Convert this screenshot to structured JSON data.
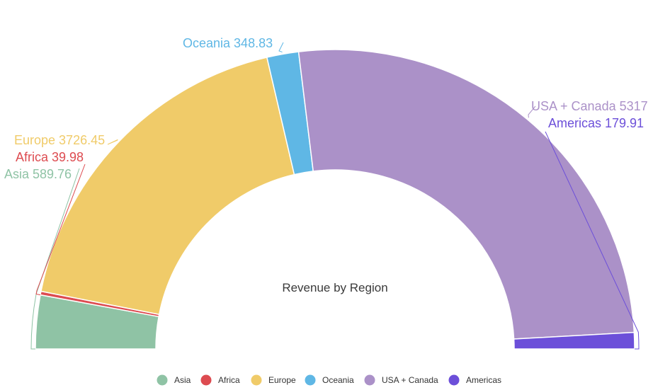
{
  "chart_data": {
    "type": "pie",
    "style": "semi-donut",
    "title": "Revenue by Region",
    "legend_position": "bottom",
    "slices": [
      {
        "name": "Asia",
        "value": 589.76,
        "label": "Asia 589.76",
        "color": "#8fc3a5"
      },
      {
        "name": "Africa",
        "value": 39.98,
        "label": "Africa 39.98",
        "color": "#dd4b50"
      },
      {
        "name": "Europe",
        "value": 3726.45,
        "label": "Europe 3726.45",
        "color": "#f0cb69"
      },
      {
        "name": "Oceania",
        "value": 348.83,
        "label": "Oceania 348.83",
        "color": "#5fb7e5"
      },
      {
        "name": "USA + Canada",
        "value": 5317,
        "label": "USA + Canada 5317",
        "color": "#ab91c8"
      },
      {
        "name": "Americas",
        "value": 179.91,
        "label": "Americas 179.91",
        "color": "#6c4fd9"
      }
    ]
  }
}
